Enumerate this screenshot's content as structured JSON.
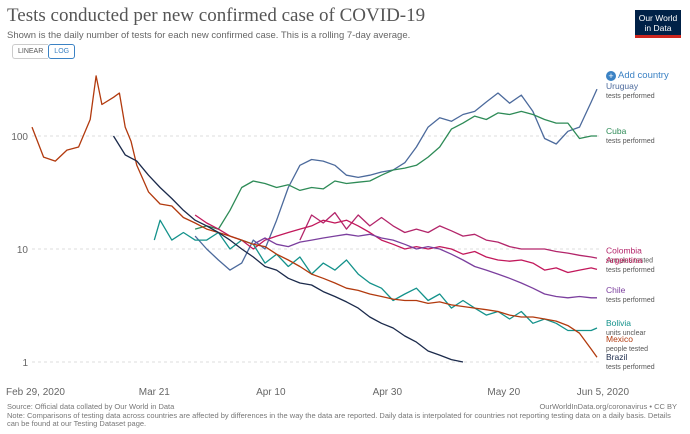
{
  "header": {
    "title": "Tests conducted per new confirmed case of COVID-19",
    "subtitle": "Shown is the daily number of tests for each new confirmed case. This is a rolling 7-day average.",
    "logo_line1": "Our World",
    "logo_line2": "in Data"
  },
  "controls": {
    "linear_label": "LINEAR",
    "log_label": "LOG",
    "add_country_label": "Add country"
  },
  "footer": {
    "source": "Source: Official data collated by Our World in Data",
    "note_line1": "Note: Comparisons of testing data across countries are affected by differences in the way the data are reported. Daily data is interpolated for countries not reporting testing data on a daily basis. Details",
    "note_line2": "can be found at our Testing Dataset page.",
    "url": "OurWorldInData.org/coronavirus • CC BY"
  },
  "chart_data": {
    "type": "line",
    "title": "Tests conducted per new confirmed case of COVID-19",
    "y_scale": "log",
    "ylim": [
      1,
      400
    ],
    "x_range": [
      0,
      97
    ],
    "y_ticks": [
      {
        "value": 1,
        "label": "1"
      },
      {
        "value": 10,
        "label": "10"
      },
      {
        "value": 100,
        "label": "100"
      }
    ],
    "x_ticks": [
      {
        "day": 0,
        "label": "Feb 29, 2020"
      },
      {
        "day": 21,
        "label": "Mar 21"
      },
      {
        "day": 41,
        "label": "Apr 10"
      },
      {
        "day": 61,
        "label": "Apr 30"
      },
      {
        "day": 81,
        "label": "May 20"
      },
      {
        "day": 97,
        "label": "Jun 5, 2020"
      }
    ],
    "series": [
      {
        "name": "Uruguay",
        "sublabel": "tests performed",
        "color": "#4c6a9c",
        "label_value": 250,
        "points": [
          [
            28,
            13
          ],
          [
            30,
            10
          ],
          [
            32,
            8
          ],
          [
            34,
            6.5
          ],
          [
            36,
            7.5
          ],
          [
            38,
            12
          ],
          [
            40,
            10
          ],
          [
            42,
            18
          ],
          [
            44,
            35
          ],
          [
            46,
            55
          ],
          [
            48,
            62
          ],
          [
            50,
            60
          ],
          [
            52,
            55
          ],
          [
            54,
            45
          ],
          [
            56,
            43
          ],
          [
            58,
            45
          ],
          [
            60,
            48
          ],
          [
            62,
            50
          ],
          [
            64,
            58
          ],
          [
            66,
            80
          ],
          [
            68,
            120
          ],
          [
            70,
            145
          ],
          [
            72,
            135
          ],
          [
            74,
            155
          ],
          [
            76,
            165
          ],
          [
            78,
            200
          ],
          [
            80,
            240
          ],
          [
            82,
            195
          ],
          [
            84,
            230
          ],
          [
            86,
            165
          ],
          [
            88,
            95
          ],
          [
            90,
            85
          ],
          [
            92,
            110
          ],
          [
            94,
            120
          ],
          [
            96,
            200
          ],
          [
            97,
            260
          ]
        ]
      },
      {
        "name": "Cuba",
        "sublabel": "tests performed",
        "color": "#2e8b57",
        "label_value": 100,
        "points": [
          [
            28,
            15
          ],
          [
            30,
            16
          ],
          [
            32,
            15
          ],
          [
            34,
            22
          ],
          [
            36,
            35
          ],
          [
            38,
            40
          ],
          [
            40,
            38
          ],
          [
            42,
            35
          ],
          [
            44,
            37
          ],
          [
            46,
            33
          ],
          [
            48,
            35
          ],
          [
            50,
            34
          ],
          [
            52,
            40
          ],
          [
            54,
            38
          ],
          [
            56,
            39
          ],
          [
            58,
            40
          ],
          [
            60,
            45
          ],
          [
            62,
            50
          ],
          [
            64,
            52
          ],
          [
            66,
            55
          ],
          [
            68,
            65
          ],
          [
            70,
            80
          ],
          [
            72,
            115
          ],
          [
            74,
            130
          ],
          [
            76,
            150
          ],
          [
            78,
            140
          ],
          [
            80,
            160
          ],
          [
            82,
            155
          ],
          [
            84,
            165
          ],
          [
            86,
            155
          ],
          [
            88,
            140
          ],
          [
            90,
            130
          ],
          [
            92,
            130
          ],
          [
            94,
            95
          ],
          [
            96,
            100
          ],
          [
            97,
            100
          ]
        ]
      },
      {
        "name": "Colombia",
        "sublabel": "samples tested",
        "color": "#b3256a",
        "label_value": 8.8,
        "points": [
          [
            46,
            12
          ],
          [
            48,
            20
          ],
          [
            50,
            17
          ],
          [
            52,
            21
          ],
          [
            54,
            15
          ],
          [
            56,
            20
          ],
          [
            58,
            16
          ],
          [
            60,
            19
          ],
          [
            62,
            16
          ],
          [
            64,
            14
          ],
          [
            66,
            15
          ],
          [
            68,
            14
          ],
          [
            70,
            16
          ],
          [
            72,
            14.5
          ],
          [
            74,
            13
          ],
          [
            76,
            13.5
          ],
          [
            78,
            12
          ],
          [
            80,
            11.5
          ],
          [
            82,
            10.5
          ],
          [
            84,
            10
          ],
          [
            86,
            10
          ],
          [
            88,
            10
          ],
          [
            90,
            9.5
          ],
          [
            92,
            9.2
          ],
          [
            94,
            8.8
          ],
          [
            96,
            8.5
          ],
          [
            97,
            8.3
          ]
        ]
      },
      {
        "name": "Argentina",
        "sublabel": "tests performed",
        "color": "#c2185b",
        "label_value": 7.2,
        "points": [
          [
            28,
            20
          ],
          [
            30,
            17
          ],
          [
            32,
            15
          ],
          [
            34,
            13
          ],
          [
            36,
            12
          ],
          [
            38,
            10
          ],
          [
            40,
            12
          ],
          [
            42,
            13
          ],
          [
            44,
            14
          ],
          [
            46,
            15
          ],
          [
            48,
            16
          ],
          [
            50,
            18
          ],
          [
            52,
            17
          ],
          [
            54,
            18
          ],
          [
            56,
            16
          ],
          [
            58,
            14
          ],
          [
            60,
            12
          ],
          [
            62,
            11
          ],
          [
            64,
            10
          ],
          [
            66,
            10.5
          ],
          [
            68,
            10
          ],
          [
            70,
            10.5
          ],
          [
            72,
            10
          ],
          [
            74,
            9
          ],
          [
            76,
            9.5
          ],
          [
            78,
            8.5
          ],
          [
            80,
            8
          ],
          [
            82,
            7.8
          ],
          [
            84,
            8
          ],
          [
            86,
            7.5
          ],
          [
            88,
            6.5
          ],
          [
            90,
            6.8
          ],
          [
            92,
            6.2
          ],
          [
            94,
            6.5
          ],
          [
            96,
            6.8
          ],
          [
            97,
            6.6
          ]
        ]
      },
      {
        "name": "Chile",
        "sublabel": "tests performed",
        "color": "#7b3f9e",
        "label_value": 3.9,
        "points": [
          [
            38,
            11
          ],
          [
            40,
            12.5
          ],
          [
            42,
            11
          ],
          [
            44,
            10.5
          ],
          [
            46,
            11.5
          ],
          [
            48,
            12
          ],
          [
            50,
            12.5
          ],
          [
            52,
            13
          ],
          [
            54,
            13.5
          ],
          [
            56,
            13
          ],
          [
            58,
            13.5
          ],
          [
            60,
            12.5
          ],
          [
            62,
            12
          ],
          [
            64,
            11
          ],
          [
            66,
            10
          ],
          [
            68,
            10.5
          ],
          [
            70,
            10
          ],
          [
            72,
            9
          ],
          [
            74,
            8
          ],
          [
            76,
            7
          ],
          [
            78,
            6.5
          ],
          [
            80,
            6
          ],
          [
            82,
            5.5
          ],
          [
            84,
            5
          ],
          [
            86,
            4.5
          ],
          [
            88,
            4
          ],
          [
            90,
            3.8
          ],
          [
            92,
            3.7
          ],
          [
            94,
            3.8
          ],
          [
            96,
            3.7
          ],
          [
            97,
            3.7
          ]
        ]
      },
      {
        "name": "Bolivia",
        "sublabel": "units unclear",
        "color": "#14928b",
        "label_value": 2.0,
        "points": [
          [
            21,
            12
          ],
          [
            22,
            18
          ],
          [
            24,
            12
          ],
          [
            26,
            14
          ],
          [
            28,
            12
          ],
          [
            30,
            12
          ],
          [
            32,
            14
          ],
          [
            34,
            10
          ],
          [
            36,
            12
          ],
          [
            38,
            11
          ],
          [
            40,
            7.5
          ],
          [
            42,
            9
          ],
          [
            44,
            7
          ],
          [
            46,
            8.5
          ],
          [
            48,
            6
          ],
          [
            50,
            7.5
          ],
          [
            52,
            6.5
          ],
          [
            54,
            8
          ],
          [
            56,
            6
          ],
          [
            58,
            5
          ],
          [
            60,
            4.5
          ],
          [
            62,
            3.5
          ],
          [
            64,
            4
          ],
          [
            66,
            4.5
          ],
          [
            68,
            3.5
          ],
          [
            70,
            4
          ],
          [
            72,
            3
          ],
          [
            74,
            3.5
          ],
          [
            76,
            3
          ],
          [
            78,
            2.6
          ],
          [
            80,
            2.8
          ],
          [
            82,
            2.4
          ],
          [
            84,
            2.8
          ],
          [
            86,
            2.2
          ],
          [
            88,
            2.4
          ],
          [
            90,
            2.2
          ],
          [
            92,
            1.9
          ],
          [
            94,
            1.9
          ],
          [
            96,
            1.9
          ],
          [
            97,
            2.0
          ]
        ]
      },
      {
        "name": "Mexico",
        "sublabel": "people tested",
        "color": "#b23a0e",
        "label_value": 1.45,
        "points": [
          [
            0,
            120
          ],
          [
            2,
            65
          ],
          [
            4,
            60
          ],
          [
            6,
            75
          ],
          [
            8,
            80
          ],
          [
            10,
            140
          ],
          [
            11,
            340
          ],
          [
            12,
            190
          ],
          [
            14,
            220
          ],
          [
            15,
            240
          ],
          [
            16,
            120
          ],
          [
            17,
            90
          ],
          [
            18,
            55
          ],
          [
            20,
            32
          ],
          [
            22,
            25
          ],
          [
            24,
            24
          ],
          [
            26,
            19
          ],
          [
            28,
            17
          ],
          [
            30,
            15
          ],
          [
            32,
            14
          ],
          [
            34,
            13
          ],
          [
            36,
            12
          ],
          [
            38,
            11
          ],
          [
            40,
            10.5
          ],
          [
            42,
            9
          ],
          [
            44,
            8
          ],
          [
            46,
            7
          ],
          [
            48,
            6
          ],
          [
            50,
            5.5
          ],
          [
            52,
            5
          ],
          [
            54,
            4.5
          ],
          [
            56,
            4.3
          ],
          [
            58,
            4
          ],
          [
            60,
            3.8
          ],
          [
            62,
            3.6
          ],
          [
            64,
            3.5
          ],
          [
            66,
            3.5
          ],
          [
            68,
            3.3
          ],
          [
            70,
            3.4
          ],
          [
            72,
            3.2
          ],
          [
            74,
            3.1
          ],
          [
            76,
            3.0
          ],
          [
            78,
            2.9
          ],
          [
            80,
            2.8
          ],
          [
            82,
            2.6
          ],
          [
            84,
            2.5
          ],
          [
            86,
            2.5
          ],
          [
            88,
            2.4
          ],
          [
            90,
            2.3
          ],
          [
            92,
            2.1
          ],
          [
            94,
            1.8
          ],
          [
            96,
            1.3
          ],
          [
            97,
            1.1
          ]
        ]
      },
      {
        "name": "Brazil",
        "sublabel": "tests performed",
        "color": "#1b2a4b",
        "label_value": 1.0,
        "points": [
          [
            14,
            100
          ],
          [
            16,
            68
          ],
          [
            18,
            60
          ],
          [
            20,
            45
          ],
          [
            22,
            35
          ],
          [
            24,
            28
          ],
          [
            26,
            22
          ],
          [
            28,
            18
          ],
          [
            30,
            16
          ],
          [
            32,
            14
          ],
          [
            34,
            12
          ],
          [
            36,
            10
          ],
          [
            38,
            8.5
          ],
          [
            40,
            7
          ],
          [
            42,
            6.5
          ],
          [
            44,
            5.5
          ],
          [
            46,
            5
          ],
          [
            48,
            4.8
          ],
          [
            50,
            4.2
          ],
          [
            52,
            3.8
          ],
          [
            54,
            3.4
          ],
          [
            56,
            3
          ],
          [
            58,
            2.5
          ],
          [
            60,
            2.2
          ],
          [
            62,
            2.0
          ],
          [
            64,
            1.7
          ],
          [
            66,
            1.5
          ],
          [
            68,
            1.25
          ],
          [
            70,
            1.15
          ],
          [
            72,
            1.05
          ],
          [
            74,
            1.0
          ]
        ]
      }
    ]
  }
}
